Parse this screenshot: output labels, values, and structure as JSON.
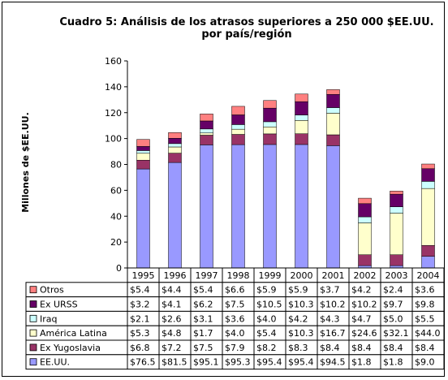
{
  "chart_data": {
    "type": "bar",
    "stacked": true,
    "title_lines": [
      "Cuadro 5: Análisis de los atrasos superiores a 250 000 $EE.UU.",
      "por país/región"
    ],
    "ylabel": "Millones de $EE.UU.",
    "xlabel": "",
    "ylim": [
      0,
      160
    ],
    "yticks": [
      0,
      20,
      40,
      60,
      80,
      100,
      120,
      140,
      160
    ],
    "grid": false,
    "legend_position": "data-table",
    "categories": [
      "1995",
      "1996",
      "1997",
      "1998",
      "1999",
      "2000",
      "2001",
      "2002",
      "2003",
      "2004"
    ],
    "series": [
      {
        "name": "EE.UU.",
        "color": "#9999ff",
        "values": [
          76.5,
          81.5,
          95.1,
          95.3,
          95.4,
          95.4,
          94.5,
          1.8,
          1.8,
          9.0
        ],
        "labels": [
          "$76.5",
          "$81.5",
          "$95.1",
          "$95.3",
          "$95.4",
          "$95.4",
          "$94.5",
          "$1.8",
          "$1.8",
          "$9.0"
        ]
      },
      {
        "name": "Ex  Yugoslavia",
        "color": "#993366",
        "values": [
          6.8,
          7.2,
          7.5,
          7.9,
          8.2,
          8.3,
          8.4,
          8.4,
          8.4,
          8.4
        ],
        "labels": [
          "$6.8",
          "$7.2",
          "$7.5",
          "$7.9",
          "$8.2",
          "$8.3",
          "$8.4",
          "$8.4",
          "$8.4",
          "$8.4"
        ]
      },
      {
        "name": "América Latina",
        "color": "#ffffcc",
        "values": [
          5.3,
          4.8,
          1.7,
          4.0,
          5.4,
          10.3,
          16.7,
          24.6,
          32.1,
          44.0
        ],
        "labels": [
          "$5.3",
          "$4.8",
          "$1.7",
          "$4.0",
          "$5.4",
          "$10.3",
          "$16.7",
          "$24.6",
          "$32.1",
          "$44.0"
        ]
      },
      {
        "name": "Iraq",
        "color": "#ccffff",
        "values": [
          2.1,
          2.6,
          3.1,
          3.6,
          4.0,
          4.2,
          4.3,
          4.7,
          5.0,
          5.5
        ],
        "labels": [
          "$2.1",
          "$2.6",
          "$3.1",
          "$3.6",
          "$4.0",
          "$4.2",
          "$4.3",
          "$4.7",
          "$5.0",
          "$5.5"
        ]
      },
      {
        "name": "Ex URSS",
        "color": "#660066",
        "values": [
          3.2,
          4.1,
          6.2,
          7.5,
          10.5,
          10.3,
          10.2,
          10.2,
          9.7,
          9.8
        ],
        "labels": [
          "$3.2",
          "$4.1",
          "$6.2",
          "$7.5",
          "$10.5",
          "$10.3",
          "$10.2",
          "$10.2",
          "$9.7",
          "$9.8"
        ]
      },
      {
        "name": "Otros",
        "color": "#ff8080",
        "values": [
          5.4,
          4.4,
          5.4,
          6.6,
          5.9,
          5.9,
          3.7,
          4.2,
          2.4,
          3.6
        ],
        "labels": [
          "$5.4",
          "$4.4",
          "$5.4",
          "$6.6",
          "$5.9",
          "$5.9",
          "$3.7",
          "$4.2",
          "$2.4",
          "$3.6"
        ]
      }
    ]
  }
}
